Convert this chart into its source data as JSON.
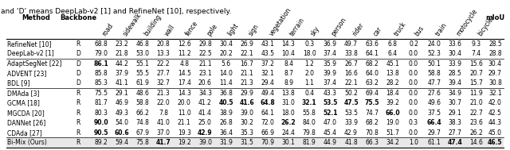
{
  "caption": "and ‘D’ means DeepLab-v2 [1] and RefineNet [10], respectively.",
  "columns": [
    "Method",
    "Backbone",
    "road",
    "sidewalk",
    "building",
    "wall",
    "fence",
    "pole",
    "light",
    "sign",
    "vegetation",
    "terrain",
    "sky",
    "person",
    "rider",
    "car",
    "truck",
    "bus",
    "train",
    "motocycle",
    "bicycle",
    "mIoU"
  ],
  "col_header_rotated": [
    "road",
    "sidewalk",
    "building",
    "wall",
    "fence",
    "pole",
    "light",
    "sign",
    "vegetation",
    "terrain",
    "sky",
    "person",
    "rider",
    "car",
    "truck",
    "bus",
    "train",
    "motocycle",
    "bicycle"
  ],
  "rows": [
    [
      "RefineNet [10]",
      "R",
      "68.8",
      "23.2",
      "46.8",
      "20.8",
      "12.6",
      "29.8",
      "30.4",
      "26.9",
      "43.1",
      "14.3",
      "0.3",
      "36.9",
      "49.7",
      "63.6",
      "6.8",
      "0.2",
      "24.0",
      "33.6",
      "9.3",
      "28.5"
    ],
    [
      "DeepLab-v2 [1]",
      "D",
      "79.0",
      "21.8",
      "53.0",
      "13.3",
      "11.2",
      "22.5",
      "20.2",
      "22.1",
      "43.5",
      "10.4",
      "18.0",
      "37.4",
      "33.8",
      "64.1",
      "6.4",
      "0.0",
      "52.3",
      "30.4",
      "7.4",
      "28.8"
    ],
    [
      "AdaptSegNet [22]",
      "D",
      "86.1",
      "44.2",
      "55.1",
      "22.2",
      "4.8",
      "21.1",
      "5.6",
      "16.7",
      "37.2",
      "8.4",
      "1.2",
      "35.9",
      "26.7",
      "68.2",
      "45.1",
      "0.0",
      "50.1",
      "33.9",
      "15.6",
      "30.4"
    ],
    [
      "ADVENT [23]",
      "D",
      "85.8",
      "37.9",
      "55.5",
      "27.7",
      "14.5",
      "23.1",
      "14.0",
      "21.1",
      "32.1",
      "8.7",
      "2.0",
      "39.9",
      "16.6",
      "64.0",
      "13.8",
      "0.0",
      "58.8",
      "28.5",
      "20.7",
      "29.7"
    ],
    [
      "BDL [9]",
      "D",
      "85.3",
      "41.1",
      "61.9",
      "32.7",
      "17.4",
      "20.6",
      "11.4",
      "21.3",
      "29.4",
      "8.9",
      "1.1",
      "37.4",
      "22.1",
      "63.2",
      "28.2",
      "0.0",
      "47.7",
      "39.4",
      "15.7",
      "30.8"
    ],
    [
      "DMAda [3]",
      "R",
      "75.5",
      "29.1",
      "48.6",
      "21.3",
      "14.3",
      "34.3",
      "36.8",
      "29.9",
      "49.4",
      "13.8",
      "0.4",
      "43.3",
      "50.2",
      "69.4",
      "18.4",
      "0.0",
      "27.6",
      "34.9",
      "11.9",
      "32.1"
    ],
    [
      "GCMA [18]",
      "R",
      "81.7",
      "46.9",
      "58.8",
      "22.0",
      "20.0",
      "41.2",
      "40.5",
      "41.6",
      "64.8",
      "31.0",
      "32.1",
      "53.5",
      "47.5",
      "75.5",
      "39.2",
      "0.0",
      "49.6",
      "30.7",
      "21.0",
      "42.0"
    ],
    [
      "MGCDA [20]",
      "R",
      "80.3",
      "49.3",
      "66.2",
      "7.8",
      "11.0",
      "41.4",
      "38.9",
      "39.0",
      "64.1",
      "18.0",
      "55.8",
      "52.1",
      "53.5",
      "74.7",
      "66.0",
      "0.0",
      "37.5",
      "29.1",
      "22.7",
      "42.5"
    ],
    [
      "DANNet [26]",
      "R",
      "90.0",
      "54.0",
      "74.8",
      "41.0",
      "21.1",
      "25.0",
      "26.8",
      "30.2",
      "72.0",
      "26.2",
      "84.0",
      "47.0",
      "33.9",
      "68.2",
      "19.0",
      "0.3",
      "66.4",
      "38.3",
      "23.6",
      "44.3"
    ],
    [
      "CDAda [27]",
      "R",
      "90.5",
      "60.6",
      "67.9",
      "37.0",
      "19.3",
      "42.9",
      "36.4",
      "35.3",
      "66.9",
      "24.4",
      "79.8",
      "45.4",
      "42.9",
      "70.8",
      "51.7",
      "0.0",
      "29.7",
      "27.7",
      "26.2",
      "45.0"
    ],
    [
      "Bi-Mix (Ours)",
      "R",
      "89.2",
      "59.4",
      "75.8",
      "41.7",
      "19.2",
      "39.0",
      "31.9",
      "31.5",
      "70.9",
      "30.1",
      "81.9",
      "44.9",
      "41.8",
      "66.3",
      "34.2",
      "1.0",
      "61.1",
      "47.4",
      "14.6",
      "46.5"
    ]
  ],
  "bold_cells": {
    "2": [
      "AdaptSegNet [22]",
      "DANNet [26]",
      "CDAda [27]"
    ],
    "3": [
      "CDAda [27]"
    ],
    "5": [
      "Bi-Mix (Ours)"
    ],
    "7": [
      "CDAda [27]"
    ],
    "8": [
      "GCMA [18]"
    ],
    "9": [
      "GCMA [18]"
    ],
    "10": [
      "GCMA [18]"
    ],
    "11": [
      "DANNet [26]"
    ],
    "12": [
      "GCMA [18]"
    ],
    "13": [
      "GCMA [18]",
      "MGCDA [20]"
    ],
    "14": [
      "GCMA [18]"
    ],
    "15": [
      "GCMA [18]"
    ],
    "16": [
      "MGCDA [20]"
    ],
    "18": [
      "DANNet [26]"
    ],
    "19": [
      "Bi-Mix (Ours)"
    ],
    "21": [
      "Bi-Mix (Ours)"
    ]
  },
  "group_separators": [
    2,
    5,
    10
  ],
  "highlight_row": "Bi-Mix (Ours)",
  "bg_color": "#ffffff",
  "font_size": 5.5,
  "header_font_size": 5.5
}
